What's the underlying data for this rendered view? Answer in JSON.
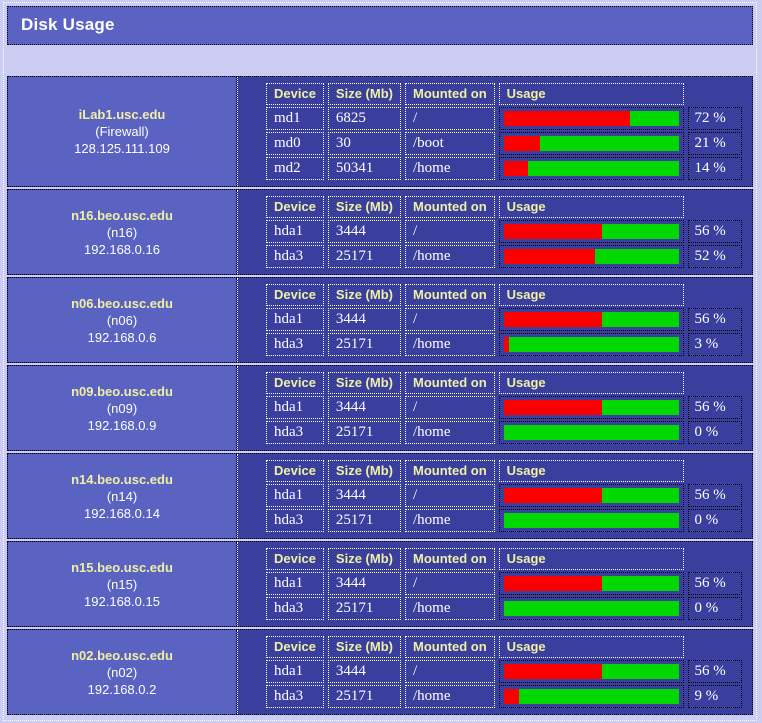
{
  "page": {
    "title": "Disk Usage"
  },
  "colors": {
    "page_bg": "#cbcef2",
    "slate_bg": "#5a62c2",
    "panel_bg": "#3a3f9e",
    "label_yellow": "#f0f0a2",
    "used_color": "#fc0000",
    "free_color": "#00d800"
  },
  "table": {
    "headers": {
      "device": "Device",
      "size": "Size (Mb)",
      "mounted": "Mounted on",
      "usage": "Usage"
    }
  },
  "hosts": [
    {
      "name": "iLab1.usc.edu",
      "alias": "(Firewall)",
      "ip": "128.125.111.109",
      "disks": [
        {
          "device": "md1",
          "size": "6825",
          "mounted": "/",
          "usage_pct": 72,
          "usage_label": "72 %"
        },
        {
          "device": "md0",
          "size": "30",
          "mounted": "/boot",
          "usage_pct": 21,
          "usage_label": "21 %"
        },
        {
          "device": "md2",
          "size": "50341",
          "mounted": "/home",
          "usage_pct": 14,
          "usage_label": "14 %"
        }
      ]
    },
    {
      "name": "n16.beo.usc.edu",
      "alias": "(n16)",
      "ip": "192.168.0.16",
      "disks": [
        {
          "device": "hda1",
          "size": "3444",
          "mounted": "/",
          "usage_pct": 56,
          "usage_label": "56 %"
        },
        {
          "device": "hda3",
          "size": "25171",
          "mounted": "/home",
          "usage_pct": 52,
          "usage_label": "52 %"
        }
      ]
    },
    {
      "name": "n06.beo.usc.edu",
      "alias": "(n06)",
      "ip": "192.168.0.6",
      "disks": [
        {
          "device": "hda1",
          "size": "3444",
          "mounted": "/",
          "usage_pct": 56,
          "usage_label": "56 %"
        },
        {
          "device": "hda3",
          "size": "25171",
          "mounted": "/home",
          "usage_pct": 3,
          "usage_label": "3 %"
        }
      ]
    },
    {
      "name": "n09.beo.usc.edu",
      "alias": "(n09)",
      "ip": "192.168.0.9",
      "disks": [
        {
          "device": "hda1",
          "size": "3444",
          "mounted": "/",
          "usage_pct": 56,
          "usage_label": "56 %"
        },
        {
          "device": "hda3",
          "size": "25171",
          "mounted": "/home",
          "usage_pct": 0,
          "usage_label": "0 %"
        }
      ]
    },
    {
      "name": "n14.beo.usc.edu",
      "alias": "(n14)",
      "ip": "192.168.0.14",
      "disks": [
        {
          "device": "hda1",
          "size": "3444",
          "mounted": "/",
          "usage_pct": 56,
          "usage_label": "56 %"
        },
        {
          "device": "hda3",
          "size": "25171",
          "mounted": "/home",
          "usage_pct": 0,
          "usage_label": "0 %"
        }
      ]
    },
    {
      "name": "n15.beo.usc.edu",
      "alias": "(n15)",
      "ip": "192.168.0.15",
      "disks": [
        {
          "device": "hda1",
          "size": "3444",
          "mounted": "/",
          "usage_pct": 56,
          "usage_label": "56 %"
        },
        {
          "device": "hda3",
          "size": "25171",
          "mounted": "/home",
          "usage_pct": 0,
          "usage_label": "0 %"
        }
      ]
    },
    {
      "name": "n02.beo.usc.edu",
      "alias": "(n02)",
      "ip": "192.168.0.2",
      "disks": [
        {
          "device": "hda1",
          "size": "3444",
          "mounted": "/",
          "usage_pct": 56,
          "usage_label": "56 %"
        },
        {
          "device": "hda3",
          "size": "25171",
          "mounted": "/home",
          "usage_pct": 9,
          "usage_label": "9 %"
        }
      ]
    }
  ]
}
